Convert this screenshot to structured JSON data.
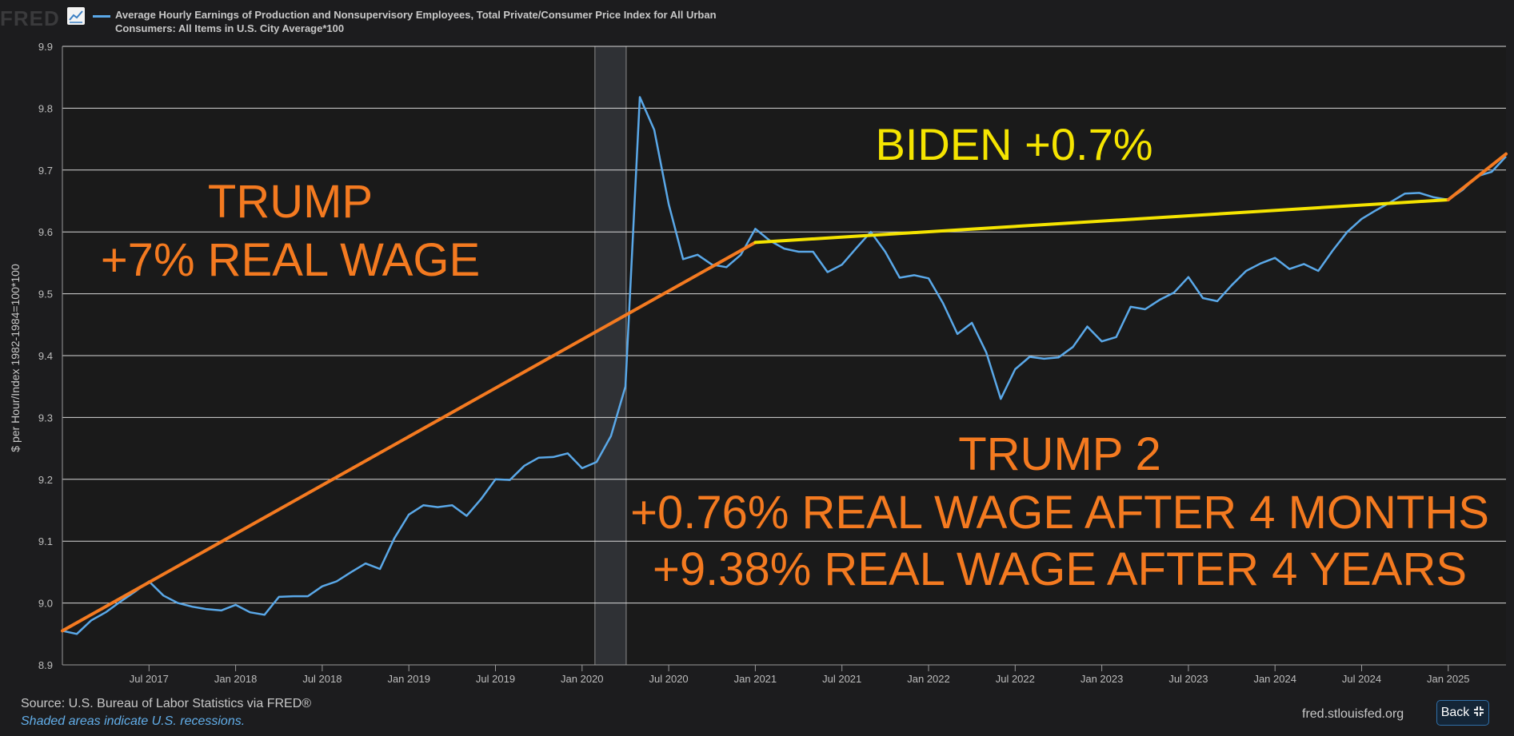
{
  "header": {
    "logo_text": "FRED",
    "legend_label": "Average Hourly Earnings of Production and Nonsupervisory Employees, Total Private/Consumer Price Index for All Urban Consumers: All Items in U.S. City Average*100"
  },
  "footer": {
    "source": "Source: U.S. Bureau of Labor Statistics via FRED®",
    "recession_note": "Shaded areas indicate U.S. recessions.",
    "url": "fred.stlouisfed.org",
    "back_label": "Back"
  },
  "colors": {
    "background": "#1c1c1e",
    "series": "#5aa8e8",
    "trend_trump": "#f47a20",
    "trend_biden": "#f5e400",
    "annotation_trump": "#f47a20",
    "annotation_biden": "#f5e400",
    "recession": "#2f3135"
  },
  "chart_data": {
    "type": "line",
    "ylabel": "$ per Hour/Index 1982-1984=100*100",
    "ylim": [
      8.9,
      9.9
    ],
    "xlim": [
      "2017-01",
      "2025-05"
    ],
    "y_ticks": [
      "8.9",
      "9.0",
      "9.1",
      "9.2",
      "9.3",
      "9.4",
      "9.5",
      "9.6",
      "9.7",
      "9.8",
      "9.9"
    ],
    "x_ticks": [
      {
        "label": "Jul 2017",
        "date": "2017-07"
      },
      {
        "label": "Jan 2018",
        "date": "2018-01"
      },
      {
        "label": "Jul 2018",
        "date": "2018-07"
      },
      {
        "label": "Jan 2019",
        "date": "2019-01"
      },
      {
        "label": "Jul 2019",
        "date": "2019-07"
      },
      {
        "label": "Jan 2020",
        "date": "2020-01"
      },
      {
        "label": "Jul 2020",
        "date": "2020-07"
      },
      {
        "label": "Jan 2021",
        "date": "2021-01"
      },
      {
        "label": "Jul 2021",
        "date": "2021-07"
      },
      {
        "label": "Jan 2022",
        "date": "2022-01"
      },
      {
        "label": "Jul 2022",
        "date": "2022-07"
      },
      {
        "label": "Jan 2023",
        "date": "2023-01"
      },
      {
        "label": "Jul 2023",
        "date": "2023-07"
      },
      {
        "label": "Jan 2024",
        "date": "2024-01"
      },
      {
        "label": "Jul 2024",
        "date": "2024-07"
      },
      {
        "label": "Jan 2025",
        "date": "2025-01"
      }
    ],
    "grid": true,
    "recession": {
      "start": "2020-02",
      "end": "2020-04"
    },
    "series": [
      {
        "x": [
          "2017-01",
          "2017-02",
          "2017-03",
          "2017-04",
          "2017-05",
          "2017-06",
          "2017-07",
          "2017-08",
          "2017-09",
          "2017-10",
          "2017-11",
          "2017-12",
          "2018-01",
          "2018-02",
          "2018-03",
          "2018-04",
          "2018-05",
          "2018-06",
          "2018-07",
          "2018-08",
          "2018-09",
          "2018-10",
          "2018-11",
          "2018-12",
          "2019-01",
          "2019-02",
          "2019-03",
          "2019-04",
          "2019-05",
          "2019-06",
          "2019-07",
          "2019-08",
          "2019-09",
          "2019-10",
          "2019-11",
          "2019-12",
          "2020-01",
          "2020-02",
          "2020-03",
          "2020-04",
          "2020-05",
          "2020-06",
          "2020-07",
          "2020-08",
          "2020-09",
          "2020-10",
          "2020-11",
          "2020-12",
          "2021-01",
          "2021-02",
          "2021-03",
          "2021-04",
          "2021-05",
          "2021-06",
          "2021-07",
          "2021-08",
          "2021-09",
          "2021-10",
          "2021-11",
          "2021-12",
          "2022-01",
          "2022-02",
          "2022-03",
          "2022-04",
          "2022-05",
          "2022-06",
          "2022-07",
          "2022-08",
          "2022-09",
          "2022-10",
          "2022-11",
          "2022-12",
          "2023-01",
          "2023-02",
          "2023-03",
          "2023-04",
          "2023-05",
          "2023-06",
          "2023-07",
          "2023-08",
          "2023-09",
          "2023-10",
          "2023-11",
          "2023-12",
          "2024-01",
          "2024-02",
          "2024-03",
          "2024-04",
          "2024-05",
          "2024-06",
          "2024-07",
          "2024-08",
          "2024-09",
          "2024-10",
          "2024-11",
          "2024-12",
          "2025-01",
          "2025-02",
          "2025-03",
          "2025-04",
          "2025-05"
        ],
        "values": [
          8.955,
          8.95,
          8.972,
          8.985,
          9.002,
          9.018,
          9.035,
          9.012,
          9.0,
          8.994,
          8.99,
          8.988,
          8.997,
          8.985,
          8.981,
          9.01,
          9.011,
          9.011,
          9.027,
          9.035,
          9.05,
          9.064,
          9.055,
          9.105,
          9.143,
          9.158,
          9.155,
          9.158,
          9.141,
          9.168,
          9.2,
          9.199,
          9.222,
          9.235,
          9.236,
          9.242,
          9.218,
          9.228,
          9.27,
          9.35,
          9.818,
          9.765,
          9.645,
          9.556,
          9.563,
          9.547,
          9.543,
          9.563,
          9.605,
          9.586,
          9.573,
          9.568,
          9.568,
          9.535,
          9.547,
          9.574,
          9.6,
          9.568,
          9.526,
          9.53,
          9.525,
          9.485,
          9.435,
          9.453,
          9.405,
          9.33,
          9.378,
          9.398,
          9.395,
          9.397,
          9.414,
          9.447,
          9.423,
          9.43,
          9.479,
          9.475,
          9.49,
          9.502,
          9.527,
          9.493,
          9.488,
          9.514,
          9.537,
          9.549,
          9.558,
          9.54,
          9.548,
          9.537,
          9.57,
          9.6,
          9.621,
          9.635,
          9.648,
          9.662,
          9.663,
          9.656,
          9.652,
          9.668,
          9.69,
          9.697,
          9.722
        ]
      }
    ],
    "trend_lines": [
      {
        "points": [
          {
            "x": "2017-01",
            "y": 8.955
          },
          {
            "x": "2021-01",
            "y": 9.583
          }
        ]
      },
      {
        "points": [
          {
            "x": "2021-01",
            "y": 9.583
          },
          {
            "x": "2025-01",
            "y": 9.652
          }
        ]
      },
      {
        "points": [
          {
            "x": "2025-01",
            "y": 9.652
          },
          {
            "x": "2025-05",
            "y": 9.726
          }
        ]
      }
    ],
    "annotations": {
      "trump_title": "TRUMP",
      "trump_sub": "+7% REAL WAGE",
      "biden": "BIDEN +0.7%",
      "trump2_title": "TRUMP 2",
      "trump2_line1": "+0.76% REAL WAGE AFTER 4 MONTHS",
      "trump2_line2": "+9.38% REAL WAGE AFTER 4 YEARS"
    }
  }
}
